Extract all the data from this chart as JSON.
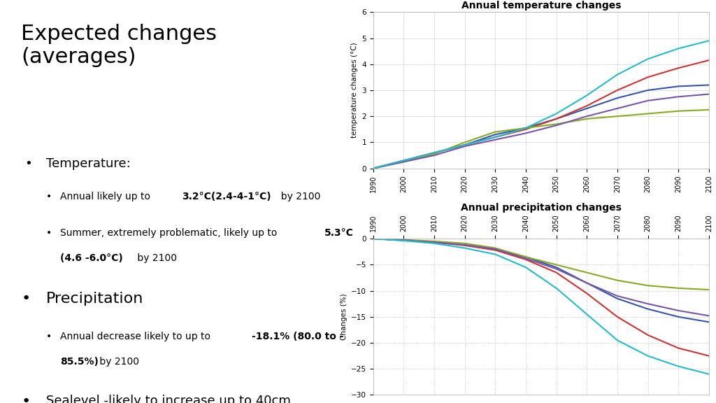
{
  "title": "Expected changes\n(averages)",
  "chart1_title": "Annual temperature changes",
  "chart1_ylabel": "temperature changes (°C)",
  "chart1_ylim": [
    0,
    6
  ],
  "chart1_yticks": [
    0,
    1,
    2,
    3,
    4,
    5,
    6
  ],
  "chart2_title": "Annual precipitation changes",
  "chart2_ylabel": "Changes (%)",
  "chart2_ylim": [
    -30,
    0
  ],
  "chart2_yticks": [
    0,
    -5,
    -10,
    -15,
    -20,
    -25,
    -30
  ],
  "years": [
    1990,
    2000,
    2010,
    2020,
    2030,
    2040,
    2050,
    2060,
    2070,
    2080,
    2090,
    2100
  ],
  "temp_data": {
    "A1BAIM": [
      0.0,
      0.3,
      0.6,
      0.9,
      1.3,
      1.55,
      1.9,
      2.3,
      2.7,
      3.0,
      3.15,
      3.2
    ],
    "A2ASF": [
      0.0,
      0.3,
      0.6,
      0.9,
      1.2,
      1.5,
      1.9,
      2.4,
      3.0,
      3.5,
      3.85,
      4.15
    ],
    "B1IMA": [
      0.0,
      0.25,
      0.55,
      1.0,
      1.4,
      1.55,
      1.7,
      1.9,
      2.0,
      2.1,
      2.2,
      2.25
    ],
    "B2MES": [
      0.0,
      0.25,
      0.5,
      0.85,
      1.1,
      1.35,
      1.65,
      2.0,
      2.3,
      2.6,
      2.75,
      2.85
    ],
    "A1FIMI": [
      0.0,
      0.3,
      0.6,
      0.9,
      1.2,
      1.55,
      2.1,
      2.8,
      3.6,
      4.2,
      4.6,
      4.9
    ]
  },
  "precip_data": {
    "A1BAIM": [
      0.0,
      -0.3,
      -0.7,
      -1.2,
      -2.0,
      -3.5,
      -5.5,
      -8.5,
      -11.5,
      -13.5,
      -15.0,
      -16.0
    ],
    "A2ASF": [
      0.0,
      -0.3,
      -0.7,
      -1.3,
      -2.2,
      -4.0,
      -6.5,
      -10.5,
      -15.0,
      -18.5,
      -21.0,
      -22.5
    ],
    "B1IMA": [
      0.0,
      -0.2,
      -0.5,
      -0.9,
      -1.8,
      -3.5,
      -5.0,
      -6.5,
      -8.0,
      -9.0,
      -9.5,
      -9.8
    ],
    "B2MES": [
      0.0,
      -0.3,
      -0.7,
      -1.2,
      -2.0,
      -3.8,
      -5.8,
      -8.5,
      -11.0,
      -12.5,
      -13.8,
      -14.8
    ],
    "A1FIMI": [
      0.0,
      -0.4,
      -0.9,
      -1.8,
      -3.0,
      -5.5,
      -9.5,
      -14.5,
      -19.5,
      -22.5,
      -24.5,
      -26.0
    ]
  },
  "series_colors": {
    "A1BAIM": "#3355aa",
    "A2ASF": "#cc3333",
    "B1IMA": "#88aa22",
    "B2MES": "#7755aa",
    "A1FIMI": "#22bbcc"
  },
  "background_color": "#ffffff"
}
